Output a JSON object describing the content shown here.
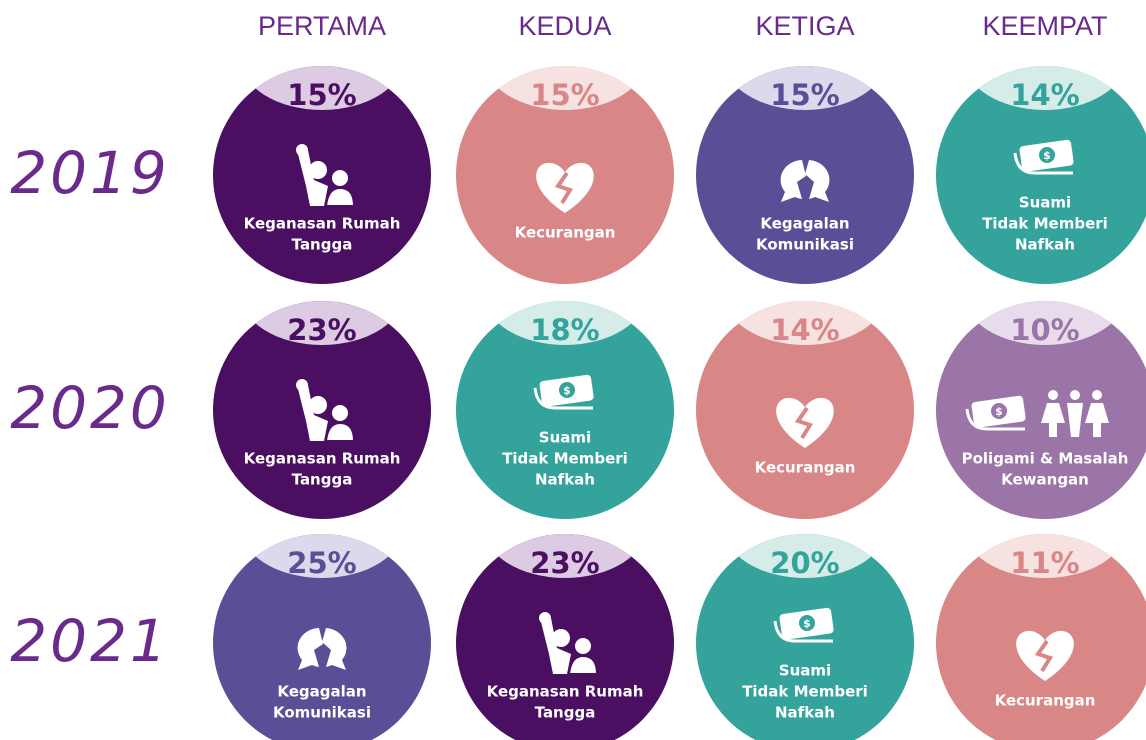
{
  "columns": [
    "PERTAMA",
    "KEDUA",
    "KETIGA",
    "KEEMPAT"
  ],
  "rows": [
    {
      "year": "2019",
      "cells": [
        {
          "percent": "15%",
          "label": [
            "Keganasan Rumah",
            "Tangga"
          ],
          "color": "#4b0f62",
          "cap": "#dccbe2",
          "icon": "fist"
        },
        {
          "percent": "15%",
          "label": [
            "Kecurangan"
          ],
          "color": "#d98686",
          "cap": "#f7e2e2",
          "icon": "heart"
        },
        {
          "percent": "15%",
          "label": [
            "Kegagalan",
            "Komunikasi"
          ],
          "color": "#5a4f96",
          "cap": "#dcd9ec",
          "icon": "bubbles"
        },
        {
          "percent": "14%",
          "label": [
            "Suami",
            "Tidak Memberi",
            "Nafkah"
          ],
          "color": "#33a39c",
          "cap": "#d5ece9",
          "icon": "money"
        }
      ]
    },
    {
      "year": "2020",
      "cells": [
        {
          "percent": "23%",
          "label": [
            "Keganasan Rumah",
            "Tangga"
          ],
          "color": "#4b0f62",
          "cap": "#dccbe2",
          "icon": "fist"
        },
        {
          "percent": "18%",
          "label": [
            "Suami",
            "Tidak Memberi",
            "Nafkah"
          ],
          "color": "#33a39c",
          "cap": "#d5ece9",
          "icon": "money"
        },
        {
          "percent": "14%",
          "label": [
            "Kecurangan"
          ],
          "color": "#d98686",
          "cap": "#f7e2e2",
          "icon": "heart"
        },
        {
          "percent": "10%",
          "label": [
            "Poligami & Masalah",
            "Kewangan"
          ],
          "color": "#9b74a8",
          "cap": "#e8dcec",
          "icon": "money-people"
        }
      ]
    },
    {
      "year": "2021",
      "cells": [
        {
          "percent": "25%",
          "label": [
            "Kegagalan",
            "Komunikasi"
          ],
          "color": "#5a4f96",
          "cap": "#dcd9ec",
          "icon": "bubbles"
        },
        {
          "percent": "23%",
          "label": [
            "Keganasan Rumah",
            "Tangga"
          ],
          "color": "#4b0f62",
          "cap": "#dccbe2",
          "icon": "fist"
        },
        {
          "percent": "20%",
          "label": [
            "Suami",
            "Tidak Memberi",
            "Nafkah"
          ],
          "color": "#33a39c",
          "cap": "#d5ece9",
          "icon": "money"
        },
        {
          "percent": "11%",
          "label": [
            "Kecurangan"
          ],
          "color": "#d98686",
          "cap": "#f7e2e2",
          "icon": "heart"
        }
      ]
    }
  ]
}
